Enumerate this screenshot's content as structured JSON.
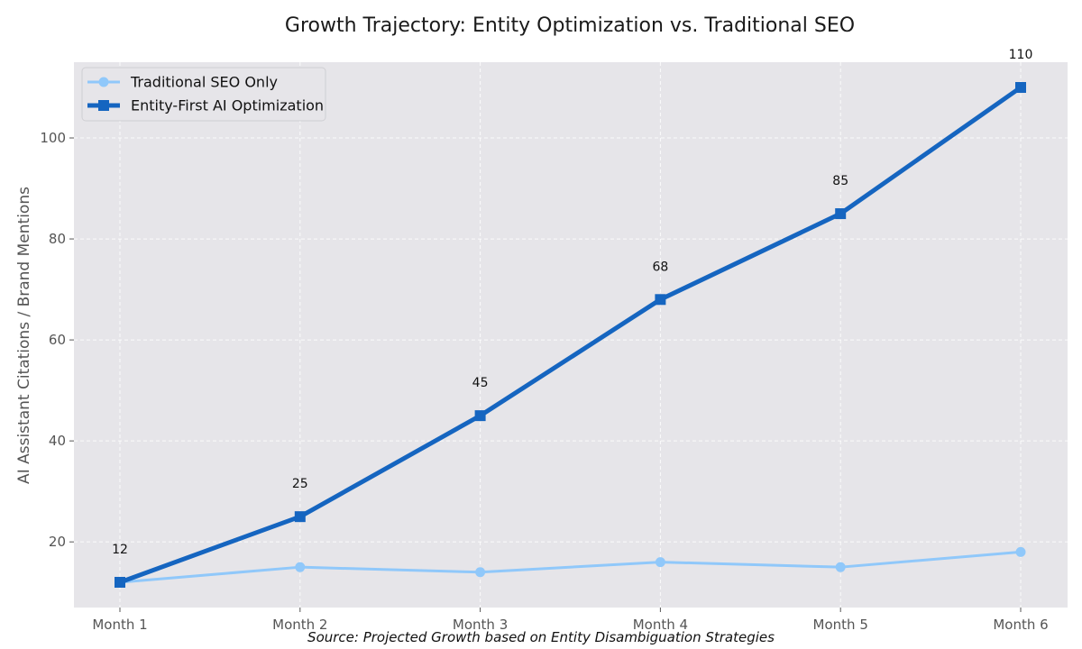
{
  "chart_data": {
    "type": "line",
    "title": "Growth Trajectory: Entity Optimization vs. Traditional SEO",
    "xlabel": "",
    "ylabel": "AI Assistant Citations / Brand Mentions",
    "categories": [
      "Month 1",
      "Month 2",
      "Month 3",
      "Month 4",
      "Month 5",
      "Month 6"
    ],
    "ylim": [
      7,
      115
    ],
    "yticks": [
      20,
      40,
      60,
      80,
      100
    ],
    "grid": true,
    "legend_position": "top-left",
    "series": [
      {
        "name": "Traditional SEO Only",
        "values": [
          12,
          15,
          14,
          16,
          15,
          18
        ],
        "color": "#90c8fa",
        "marker": "circle",
        "data_labels": false
      },
      {
        "name": "Entity-First AI Optimization",
        "values": [
          12,
          25,
          45,
          68,
          85,
          110
        ],
        "color": "#1565c0",
        "marker": "square",
        "data_labels": true
      }
    ],
    "annotation": "Source: Projected Growth based on Entity Disambiguation Strategies",
    "colors": {
      "plot_background": "#e6e5e9",
      "grid": "#ffffff"
    }
  }
}
